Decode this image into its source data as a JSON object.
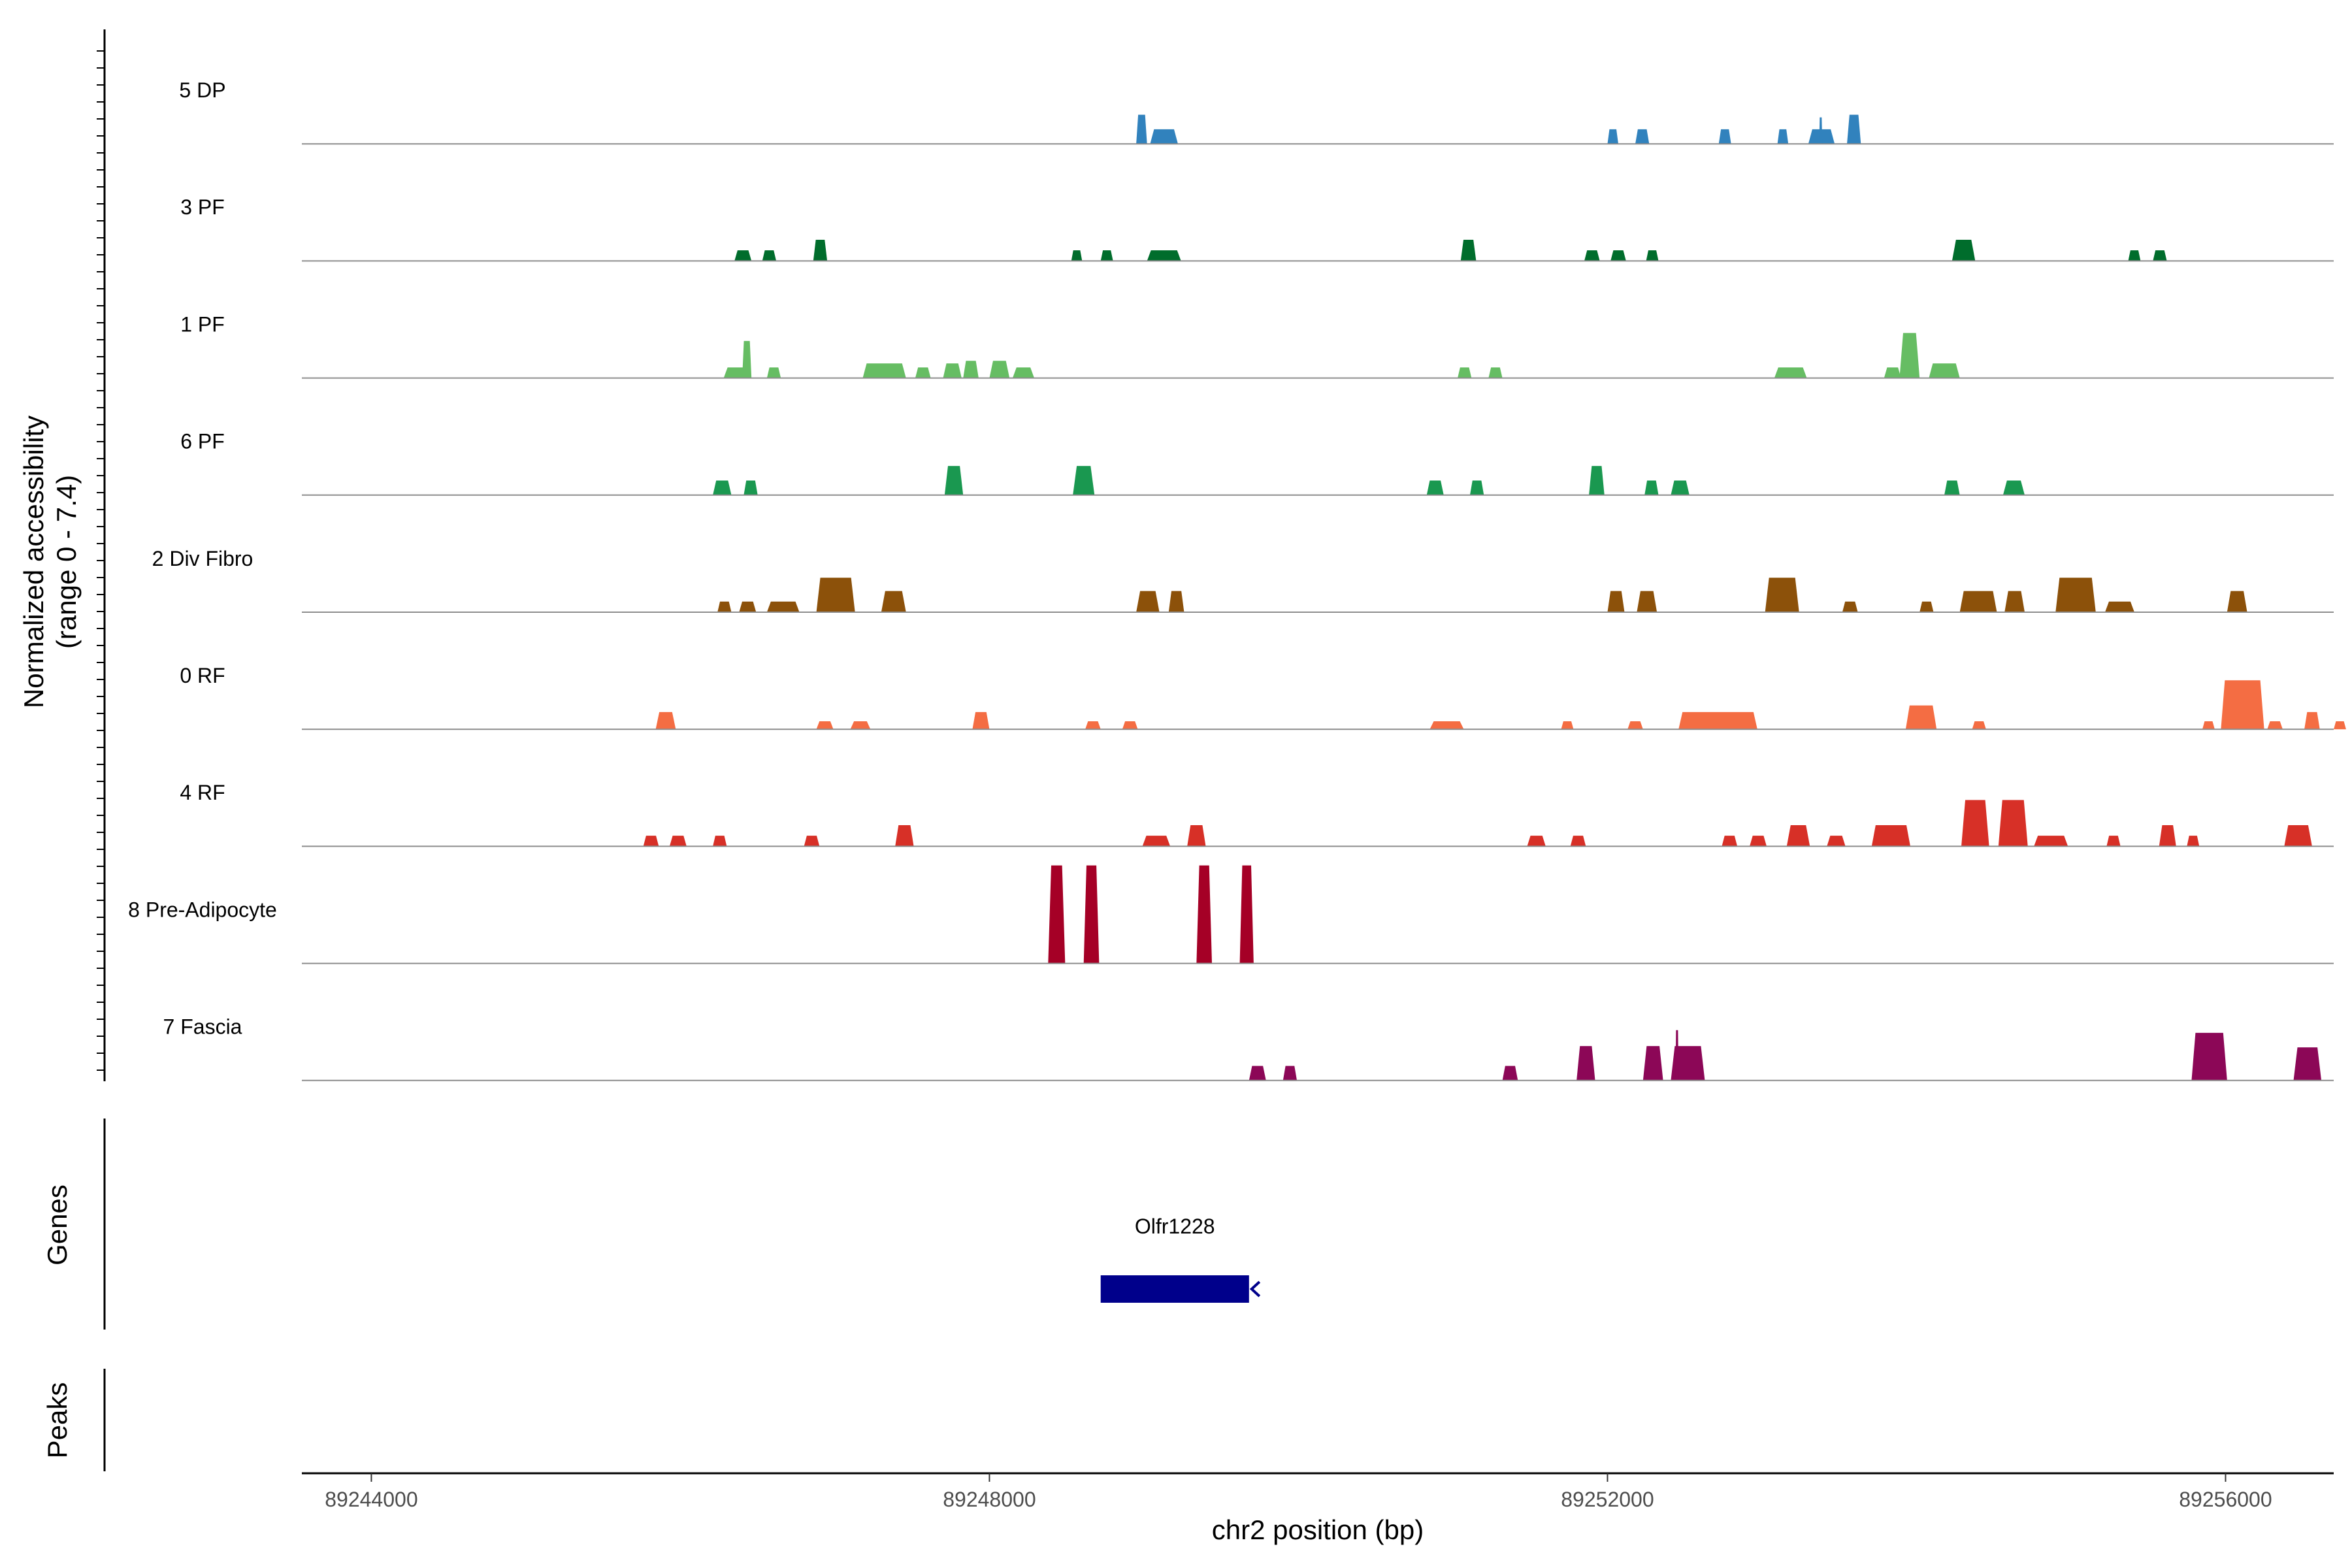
{
  "chart_data": {
    "type": "area",
    "title": "",
    "xlabel": "chr2 position (bp)",
    "ylabel": "Normalized accessibility\n(range 0 - 7.4)",
    "y_range": [
      0,
      7.4
    ],
    "x_range": [
      89243550,
      89256700
    ],
    "x_ticks": [
      89244000,
      89248000,
      89252000,
      89256000
    ],
    "x_tick_labels": [
      "89244000",
      "89248000",
      "89252000",
      "89256000"
    ],
    "grid": false,
    "legend": "none",
    "tracks": [
      {
        "name": "5 DP",
        "color": "#3182bd",
        "peaks": [
          [
            89248950,
            89249020,
            2.2
          ],
          [
            89249040,
            89249220,
            1.1
          ],
          [
            89252000,
            89252070,
            1.1
          ],
          [
            89252180,
            89252270,
            1.1
          ],
          [
            89252720,
            89252800,
            1.1
          ],
          [
            89253100,
            89253170,
            1.1
          ],
          [
            89253300,
            89253470,
            1.1
          ],
          [
            89253370,
            89253390,
            2.0
          ],
          [
            89253550,
            89253640,
            2.2
          ]
        ]
      },
      {
        "name": "3 PF",
        "color": "#006d2c",
        "peaks": [
          [
            89246350,
            89246460,
            0.8
          ],
          [
            89246530,
            89246620,
            0.8
          ],
          [
            89246860,
            89246950,
            1.6
          ],
          [
            89248530,
            89248600,
            0.8
          ],
          [
            89248720,
            89248800,
            0.8
          ],
          [
            89249020,
            89249240,
            0.8
          ],
          [
            89252250,
            89252330,
            0.8
          ],
          [
            89251050,
            89251150,
            1.6
          ],
          [
            89252020,
            89252120,
            0.8
          ],
          [
            89251850,
            89251950,
            0.8
          ],
          [
            89254230,
            89254380,
            1.6
          ],
          [
            89255370,
            89255450,
            0.8
          ],
          [
            89255530,
            89255620,
            0.8
          ]
        ]
      },
      {
        "name": "1 PF",
        "color": "#66bd63",
        "peaks": [
          [
            89246280,
            89246460,
            0.8
          ],
          [
            89246400,
            89246460,
            2.8
          ],
          [
            89246560,
            89246650,
            0.8
          ],
          [
            89247180,
            89247460,
            1.1
          ],
          [
            89247520,
            89247620,
            0.8
          ],
          [
            89247700,
            89247820,
            1.1
          ],
          [
            89247830,
            89247930,
            1.3
          ],
          [
            89248000,
            89248130,
            1.3
          ],
          [
            89248150,
            89248290,
            0.8
          ],
          [
            89251030,
            89251120,
            0.8
          ],
          [
            89251230,
            89251320,
            0.8
          ],
          [
            89253080,
            89253290,
            0.8
          ],
          [
            89253790,
            89253900,
            0.8
          ],
          [
            89253890,
            89254020,
            3.4
          ],
          [
            89254080,
            89254280,
            1.1
          ]
        ]
      },
      {
        "name": "6 PF",
        "color": "#1a9850",
        "peaks": [
          [
            89246210,
            89246330,
            1.1
          ],
          [
            89246410,
            89246500,
            1.1
          ],
          [
            89247710,
            89247830,
            2.2
          ],
          [
            89248540,
            89248680,
            2.2
          ],
          [
            89250830,
            89250940,
            1.1
          ],
          [
            89251110,
            89251200,
            1.1
          ],
          [
            89251880,
            89251980,
            2.2
          ],
          [
            89252240,
            89252330,
            1.1
          ],
          [
            89252410,
            89252530,
            1.1
          ],
          [
            89254180,
            89254280,
            1.1
          ],
          [
            89254560,
            89254700,
            1.1
          ]
        ]
      },
      {
        "name": "2 Div Fibro",
        "color": "#8c510a",
        "peaks": [
          [
            89246240,
            89246330,
            0.8
          ],
          [
            89246380,
            89246490,
            0.8
          ],
          [
            89246560,
            89246770,
            0.8
          ],
          [
            89246880,
            89247130,
            2.6
          ],
          [
            89247300,
            89247460,
            1.6
          ],
          [
            89248950,
            89249100,
            1.6
          ],
          [
            89249160,
            89249260,
            1.6
          ],
          [
            89252000,
            89252110,
            1.6
          ],
          [
            89252190,
            89252320,
            1.6
          ],
          [
            89253020,
            89253240,
            2.6
          ],
          [
            89253520,
            89253620,
            0.8
          ],
          [
            89254020,
            89254110,
            0.8
          ],
          [
            89254280,
            89254520,
            1.6
          ],
          [
            89254570,
            89254700,
            1.6
          ],
          [
            89254900,
            89255160,
            2.6
          ],
          [
            89255220,
            89255410,
            0.8
          ],
          [
            89256010,
            89256140,
            1.6
          ]
        ]
      },
      {
        "name": "0 RF",
        "color": "#f46d43",
        "peaks": [
          [
            89245840,
            89245970,
            1.3
          ],
          [
            89246880,
            89246990,
            0.6
          ],
          [
            89247100,
            89247230,
            0.6
          ],
          [
            89247890,
            89248000,
            1.3
          ],
          [
            89248620,
            89248720,
            0.6
          ],
          [
            89248860,
            89248960,
            0.6
          ],
          [
            89250850,
            89251070,
            0.6
          ],
          [
            89251700,
            89251780,
            0.6
          ],
          [
            89252130,
            89252230,
            0.6
          ],
          [
            89252460,
            89252970,
            1.3
          ],
          [
            89253930,
            89254130,
            1.8
          ],
          [
            89254360,
            89254450,
            0.6
          ],
          [
            89255850,
            89255930,
            0.6
          ],
          [
            89255970,
            89256250,
            3.7
          ],
          [
            89256270,
            89256370,
            0.6
          ],
          [
            89256510,
            89256610,
            1.3
          ],
          [
            89256700,
            89256780,
            0.6
          ]
        ]
      },
      {
        "name": "4 RF",
        "color": "#d73027",
        "peaks": [
          [
            89245760,
            89245860,
            0.8
          ],
          [
            89245930,
            89246040,
            0.8
          ],
          [
            89246210,
            89246300,
            0.8
          ],
          [
            89246800,
            89246900,
            0.8
          ],
          [
            89247390,
            89247510,
            1.6
          ],
          [
            89248990,
            89249170,
            0.8
          ],
          [
            89249280,
            89249400,
            1.6
          ],
          [
            89251480,
            89251600,
            0.8
          ],
          [
            89251760,
            89251860,
            0.8
          ],
          [
            89252740,
            89252840,
            0.8
          ],
          [
            89252920,
            89253030,
            0.8
          ],
          [
            89253160,
            89253310,
            1.6
          ],
          [
            89253420,
            89253540,
            0.8
          ],
          [
            89253710,
            89253960,
            1.6
          ],
          [
            89254290,
            89254470,
            3.5
          ],
          [
            89254530,
            89254720,
            3.5
          ],
          [
            89254760,
            89254980,
            0.8
          ],
          [
            89255230,
            89255320,
            0.8
          ],
          [
            89255570,
            89255680,
            1.6
          ],
          [
            89255750,
            89255830,
            0.8
          ],
          [
            89256380,
            89256560,
            1.6
          ]
        ]
      },
      {
        "name": "8 Pre-Adipocyte",
        "color": "#a50026",
        "peaks": [
          [
            89248380,
            89248490,
            7.4
          ],
          [
            89248610,
            89248710,
            7.4
          ],
          [
            89249340,
            89249440,
            7.4
          ],
          [
            89249620,
            89249710,
            7.4
          ]
        ]
      },
      {
        "name": "7 Fascia",
        "color": "#8c0757",
        "peaks": [
          [
            89249680,
            89249790,
            1.1
          ],
          [
            89249900,
            89249990,
            1.1
          ],
          [
            89251320,
            89251420,
            1.1
          ],
          [
            89251800,
            89251920,
            2.6
          ],
          [
            89252230,
            89252360,
            2.6
          ],
          [
            89252410,
            89252630,
            2.6
          ],
          [
            89252440,
            89252460,
            3.8
          ],
          [
            89255780,
            89256010,
            3.6
          ],
          [
            89256440,
            89256620,
            2.5
          ]
        ]
      }
    ],
    "genes": [
      {
        "name": "Olfr1228",
        "start": 89248720,
        "end": 89249680,
        "strand": "-"
      }
    ],
    "panel_labels": {
      "genes": "Genes",
      "peaks": "Peaks"
    }
  }
}
